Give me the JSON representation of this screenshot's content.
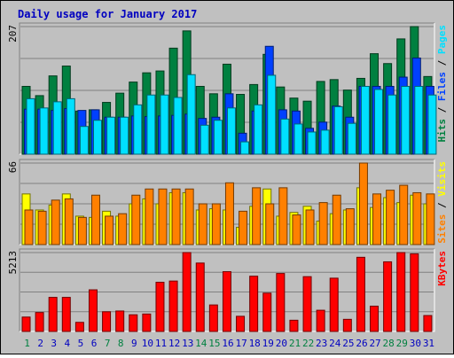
{
  "title": "Daily usage for January 2017",
  "colors": {
    "background": "#c0c0c0",
    "title": "#0000c0",
    "hits": "#008040",
    "files": "#0040ff",
    "pages": "#00e0ff",
    "visits": "#ffff00",
    "sites": "#ff8000",
    "kbytes": "#ff0000",
    "weekend_day": "#008040",
    "weekday": "#0000c0"
  },
  "chart_data": [
    {
      "type": "bar",
      "name": "hits-files-pages",
      "max_label": "207",
      "legend": [
        "Hits",
        "Files",
        "Pages"
      ],
      "legend_separator": " / ",
      "categories": [
        "1",
        "2",
        "3",
        "4",
        "5",
        "6",
        "7",
        "8",
        "9",
        "10",
        "11",
        "12",
        "13",
        "14",
        "15",
        "16",
        "17",
        "18",
        "19",
        "20",
        "21",
        "22",
        "23",
        "24",
        "25",
        "26",
        "27",
        "28",
        "29",
        "30",
        "31"
      ],
      "series": [
        {
          "name": "Hits",
          "values": [
            110,
            95,
            127,
            143,
            70,
            72,
            84,
            99,
            117,
            132,
            135,
            172,
            200,
            110,
            98,
            146,
            97,
            113,
            162,
            109,
            91,
            86,
            118,
            121,
            104,
            123,
            163,
            147,
            187,
            207,
            126
          ]
        },
        {
          "name": "Files",
          "values": [
            73,
            73,
            71,
            74,
            71,
            72,
            60,
            60,
            62,
            61,
            62,
            63,
            65,
            58,
            60,
            98,
            34,
            70,
            175,
            72,
            70,
            42,
            52,
            78,
            60,
            110,
            110,
            110,
            125,
            156,
            110
          ]
        },
        {
          "name": "Pages",
          "values": [
            90,
            75,
            85,
            90,
            45,
            55,
            60,
            60,
            80,
            96,
            96,
            92,
            129,
            47,
            55,
            75,
            20,
            80,
            128,
            57,
            49,
            36,
            39,
            77,
            50,
            110,
            105,
            96,
            110,
            110,
            96
          ]
        }
      ]
    },
    {
      "type": "bar",
      "name": "visits-sites",
      "max_label": "66",
      "legend": [
        "Sites",
        "Visits"
      ],
      "legend_separator": " / ",
      "categories": [
        "1",
        "2",
        "3",
        "4",
        "5",
        "6",
        "7",
        "8",
        "9",
        "10",
        "11",
        "12",
        "13",
        "14",
        "15",
        "16",
        "17",
        "18",
        "19",
        "20",
        "21",
        "22",
        "23",
        "24",
        "25",
        "26",
        "27",
        "28",
        "29",
        "30",
        "31"
      ],
      "series": [
        {
          "name": "Visits",
          "values": [
            41,
            28,
            32,
            41,
            23,
            22,
            27,
            23,
            33,
            37,
            33,
            42,
            42,
            28,
            29,
            28,
            14,
            31,
            45,
            23,
            26,
            31,
            19,
            25,
            28,
            46,
            30,
            38,
            34,
            40,
            33
          ]
        },
        {
          "name": "Sites",
          "values": [
            28,
            27,
            36,
            37,
            22,
            40,
            23,
            25,
            40,
            45,
            45,
            45,
            45,
            33,
            33,
            50,
            27,
            46,
            33,
            46,
            24,
            28,
            34,
            40,
            29,
            66,
            41,
            44,
            48,
            42,
            41
          ]
        }
      ]
    },
    {
      "type": "bar",
      "name": "kbytes",
      "max_label": "5213",
      "legend": [
        "KBytes"
      ],
      "categories": [
        "1",
        "2",
        "3",
        "4",
        "5",
        "6",
        "7",
        "8",
        "9",
        "10",
        "11",
        "12",
        "13",
        "14",
        "15",
        "16",
        "17",
        "18",
        "19",
        "20",
        "21",
        "22",
        "23",
        "24",
        "25",
        "26",
        "27",
        "28",
        "29",
        "30",
        "31"
      ],
      "series": [
        {
          "name": "KBytes",
          "values": [
            950,
            1250,
            2250,
            2250,
            600,
            2750,
            1300,
            1350,
            1100,
            1150,
            3250,
            3330,
            5213,
            4520,
            1750,
            3950,
            1000,
            3650,
            2530,
            3830,
            740,
            3620,
            1400,
            3520,
            800,
            4900,
            1670,
            4600,
            5213,
            5130,
            1050
          ]
        }
      ]
    }
  ]
}
